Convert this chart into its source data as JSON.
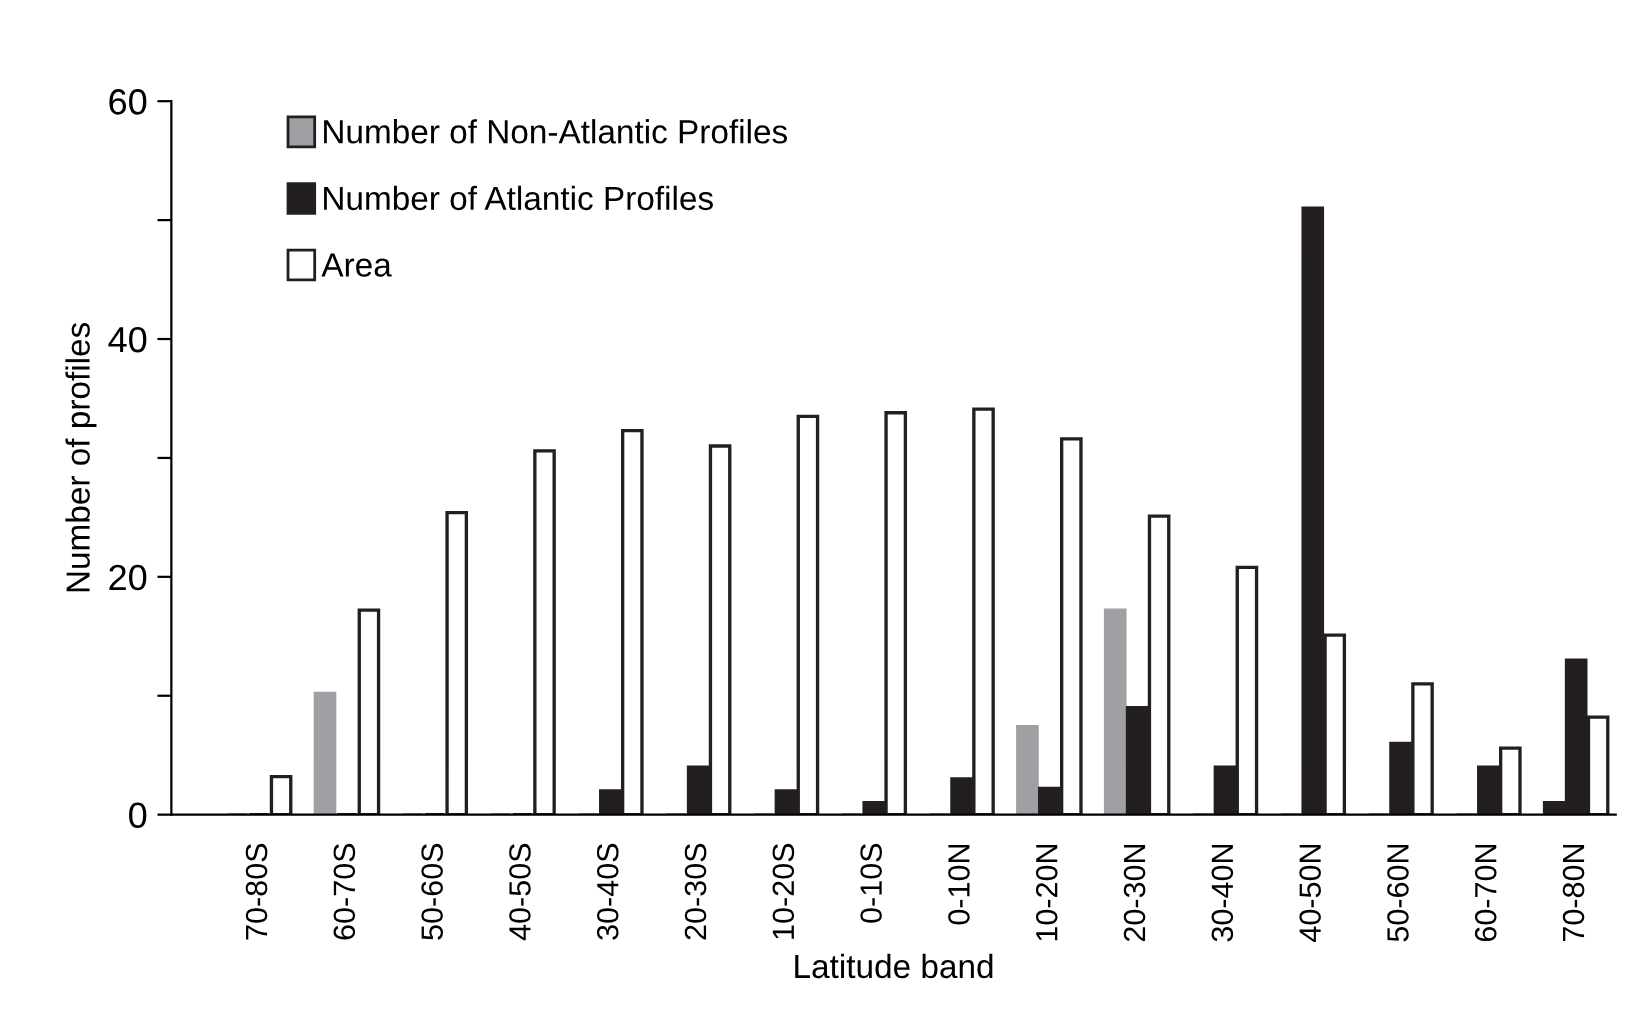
{
  "chart_data": {
    "type": "bar",
    "xlabel": "Latitude band",
    "ylabel": "Number of profiles",
    "categories": [
      "70-80S",
      "60-70S",
      "50-60S",
      "40-50S",
      "30-40S",
      "20-30S",
      "10-20S",
      "0-10S",
      "0-10N",
      "10-20N",
      "20-30N",
      "30-40N",
      "40-50N",
      "50-60N",
      "60-70N",
      "70-80N"
    ],
    "series": [
      {
        "name": "Number of Non-Atlantic Profiles",
        "color": "#a0a0a4",
        "colors": [
          "#a0a0a4",
          "#a0a0a4",
          "#a0a0a4",
          "#a0a0a4",
          "#a0a0a4",
          "#a0a0a4",
          "#a0a0a4",
          "#a0a0a4",
          "#a0a0a4",
          "#a0a0a4",
          "#a0a0a4",
          "#a0a0a4",
          "#a0a0a4",
          "#a0a0a4",
          "#a0a0a4",
          "#231f20"
        ],
        "values": [
          0,
          10.2,
          0,
          0,
          0,
          0,
          0,
          0,
          0,
          7.4,
          17.2,
          0,
          0,
          0,
          0,
          1
        ]
      },
      {
        "name": "Number of Atlantic Profiles",
        "color": "#231f20",
        "values": [
          0,
          0,
          0,
          0,
          2,
          4,
          2,
          1,
          3,
          2.2,
          9,
          4,
          51,
          6,
          4,
          13
        ]
      },
      {
        "name": "Area",
        "color": "#ffffff",
        "values": [
          3.2,
          17.2,
          25.4,
          30.6,
          32.3,
          31,
          33.5,
          33.8,
          34.1,
          31.6,
          25.1,
          20.8,
          15.1,
          11,
          5.6,
          8.2
        ]
      }
    ],
    "ylim": [
      0,
      60
    ],
    "yticks": [
      0,
      {
        "value": 10,
        "label": null
      },
      20,
      {
        "value": 30,
        "label": null
      },
      40,
      {
        "value": 50,
        "label": null
      },
      60
    ],
    "grid": false,
    "legend": "top left"
  }
}
